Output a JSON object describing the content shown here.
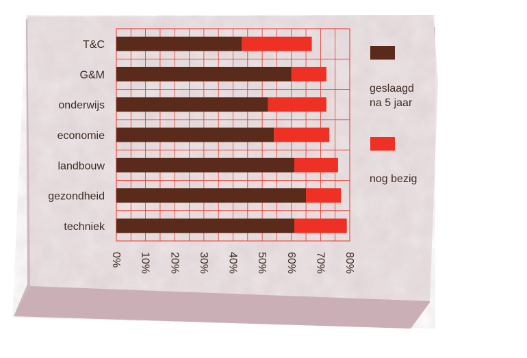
{
  "chart_data": {
    "type": "bar",
    "orientation": "horizontal",
    "stacked": true,
    "categories": [
      "T&C",
      "G&M",
      "onderwijs",
      "economie",
      "landbouw",
      "gezondheid",
      "techniek"
    ],
    "series": [
      {
        "name": "geslaagd na 5 jaar",
        "color": "#5a2a1a",
        "values": [
          43,
          60,
          52,
          54,
          61,
          65,
          61
        ]
      },
      {
        "name": "nog bezig",
        "color": "#ee3124",
        "values": [
          24,
          12,
          20,
          19,
          15,
          12,
          18
        ]
      }
    ],
    "xticks": [
      "0%",
      "10%",
      "20%",
      "30%",
      "40%",
      "50%",
      "60%",
      "70%",
      "80%"
    ],
    "xlim": [
      0,
      80
    ],
    "grid": true,
    "grid_color": "#ee3124",
    "legend_position": "right"
  },
  "legend": {
    "item1_line1": "geslaagd",
    "item1_line2": "na 5 jaar",
    "item2": "nog bezig"
  },
  "colors": {
    "stone_light": "#ece4e6",
    "stone_mid": "#dccfd3",
    "stone_side": "#cfb8bd",
    "text": "#3d2b22"
  }
}
